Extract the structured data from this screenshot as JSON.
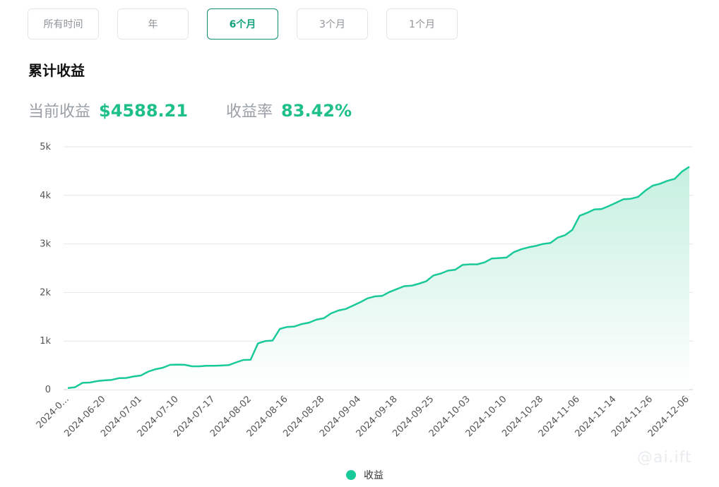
{
  "tabs": [
    {
      "label": "所有时间",
      "active": false
    },
    {
      "label": "年",
      "active": false
    },
    {
      "label": "6个月",
      "active": true
    },
    {
      "label": "3个月",
      "active": false
    },
    {
      "label": "1个月",
      "active": false
    }
  ],
  "section_title": "累计收益",
  "stats": {
    "current_label": "当前收益",
    "current_value": "$4588.21",
    "rate_label": "收益率",
    "rate_value": "83.42%"
  },
  "watermark": "@ai.ift",
  "colors": {
    "accent": "#1ac99a",
    "accent_dark": "#13a07b",
    "grid": "#e6e6e6",
    "fill_top": "#bfeedd"
  },
  "chart_data": {
    "type": "area",
    "title": "",
    "xlabel": "",
    "ylabel": "",
    "ylim": [
      0,
      5000
    ],
    "yticks": [
      0,
      1000,
      2000,
      3000,
      4000,
      5000
    ],
    "ytick_labels": [
      "0",
      "1k",
      "2k",
      "3k",
      "4k",
      "5k"
    ],
    "xtick_labels": [
      "2024-0...",
      "2024-06-20",
      "2024-07-01",
      "2024-07-10",
      "2024-07-17",
      "2024-08-02",
      "2024-08-16",
      "2024-08-28",
      "2024-09-04",
      "2024-09-18",
      "2024-09-25",
      "2024-10-03",
      "2024-10-10",
      "2024-10-28",
      "2024-11-06",
      "2024-11-14",
      "2024-11-26",
      "2024-12-06"
    ],
    "legend": {
      "position": "bottom",
      "label": "收益"
    },
    "series": [
      {
        "name": "收益",
        "values": [
          30,
          50,
          140,
          145,
          175,
          190,
          200,
          235,
          240,
          270,
          290,
          370,
          420,
          450,
          510,
          515,
          510,
          480,
          480,
          490,
          490,
          495,
          505,
          560,
          610,
          615,
          950,
          1000,
          1010,
          1250,
          1290,
          1300,
          1350,
          1380,
          1440,
          1470,
          1570,
          1630,
          1660,
          1730,
          1800,
          1880,
          1920,
          1930,
          2010,
          2070,
          2130,
          2140,
          2180,
          2230,
          2350,
          2390,
          2450,
          2470,
          2570,
          2580,
          2580,
          2620,
          2700,
          2710,
          2720,
          2830,
          2890,
          2930,
          2960,
          3000,
          3020,
          3130,
          3180,
          3290,
          3580,
          3640,
          3710,
          3720,
          3780,
          3850,
          3920,
          3930,
          3970,
          4100,
          4200,
          4240,
          4300,
          4340,
          4490,
          4588.21
        ]
      }
    ]
  }
}
